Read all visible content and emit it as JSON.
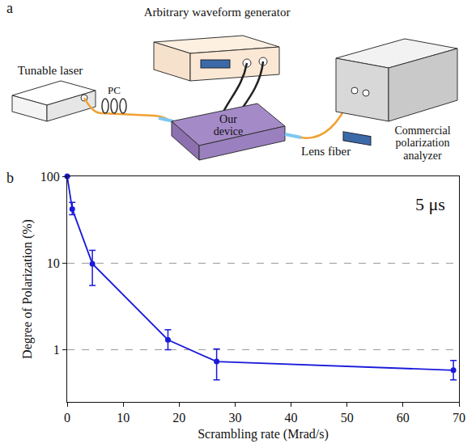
{
  "diagram": {
    "panel": "a",
    "labels": {
      "awg": "Arbitrary waveform generator",
      "laser": "Tunable laser",
      "pc": "PC",
      "device": "Our device",
      "lens": "Lens fiber",
      "analyzer": "Commercial polarization analyzer"
    }
  },
  "chart_data": {
    "panel": "b",
    "type": "scatter",
    "x_label": "Scrambling rate (Mrad/s)",
    "y_label": "Degree of Polarization (%)",
    "annotation": "5 μs",
    "x": [
      0,
      0.9,
      4.5,
      18,
      26.7,
      69
    ],
    "values": [
      100,
      42,
      9.8,
      1.3,
      0.73,
      0.58
    ],
    "error_plus": [
      0,
      8,
      4.2,
      0.4,
      0.29,
      0.17
    ],
    "error_minus": [
      0,
      6,
      4.3,
      0.3,
      0.28,
      0.13
    ],
    "color": "#1a1adb",
    "marker": "circle",
    "line_style": "solid",
    "log": "y",
    "grid": true,
    "xlim": [
      0,
      70
    ],
    "xticks": [
      0,
      10,
      20,
      30,
      40,
      50,
      60,
      70
    ],
    "ylim": [
      0.25,
      100
    ],
    "yticks": [
      1,
      10,
      100
    ]
  }
}
